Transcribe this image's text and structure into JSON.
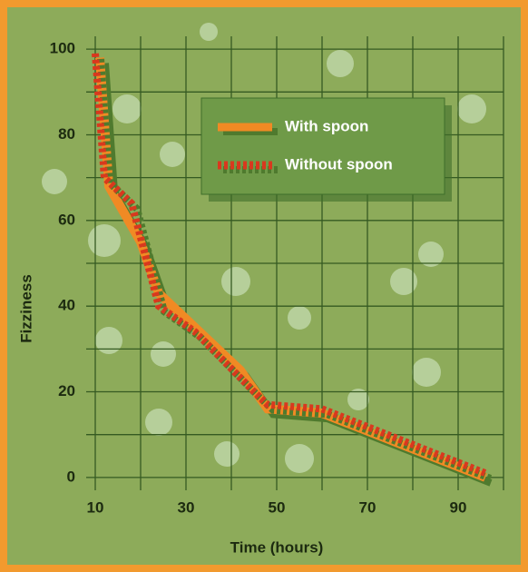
{
  "chart_data": {
    "type": "line",
    "x_label": "Time (hours)",
    "y_label": "Fizziness",
    "series": [
      {
        "name": "With spoon",
        "color": "#f08a24",
        "shadow": "#4f7a2e",
        "dashed": false,
        "x": [
          11,
          13,
          20,
          24,
          31,
          42,
          48,
          60,
          96
        ],
        "values": [
          98,
          68,
          55,
          43,
          36,
          25,
          16,
          15,
          0
        ]
      },
      {
        "name": "Without spoon",
        "color": "#d9381e",
        "shadow": "#4f7a2e",
        "dashed": true,
        "x": [
          10,
          12,
          18,
          24,
          32,
          45,
          48,
          60,
          96
        ],
        "values": [
          99,
          70,
          64,
          40,
          34,
          20,
          17,
          16,
          1
        ]
      }
    ],
    "xlim": [
      8,
      100
    ],
    "ylim": [
      -3,
      103
    ],
    "xticks": [
      10,
      30,
      50,
      70,
      90
    ],
    "yticks": [
      0,
      20,
      40,
      60,
      80,
      100
    ],
    "x_gridlines": [
      10,
      20,
      30,
      40,
      50,
      60,
      70,
      80,
      90,
      100
    ],
    "y_gridlines": [
      0,
      10,
      20,
      30,
      40,
      50,
      60,
      70,
      80,
      90,
      100
    ],
    "grid": true,
    "legend_position": "upper right"
  }
}
